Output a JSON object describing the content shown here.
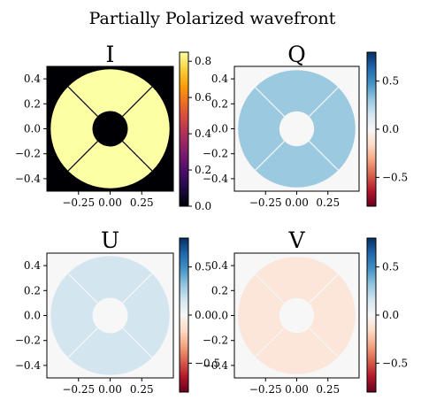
{
  "figure_title": "Partially Polarized wavefront",
  "colors": {
    "background": "#f4f4f4",
    "black": "#000000",
    "I_value": "#fcfea4",
    "Q_value": "#b3d5e8",
    "U_value": "#d2e4f0",
    "V_value": "#fbe5d9"
  },
  "colormaps": {
    "inferno": [
      "#000004",
      "#1b0c41",
      "#4a0c6b",
      "#781c6d",
      "#a52c60",
      "#cf4446",
      "#ed6925",
      "#fb9b06",
      "#f7d13d",
      "#fcffa4"
    ],
    "RdBu": [
      "#67001f",
      "#b2182b",
      "#d6604d",
      "#f4a582",
      "#fddbc7",
      "#f7f7f7",
      "#d1e5f0",
      "#92c5de",
      "#4393c3",
      "#2166ac",
      "#053061"
    ]
  },
  "chart_data": [
    {
      "type": "heatmap",
      "title": "I",
      "colormap": "inferno",
      "xlim": [
        -0.5,
        0.5
      ],
      "ylim": [
        -0.5,
        0.5
      ],
      "xticks": [
        -0.25,
        0.0,
        0.25
      ],
      "xtick_labels": [
        "−0.25",
        "0.00",
        "0.25"
      ],
      "yticks": [
        0.4,
        0.2,
        0.0,
        -0.2,
        -0.4
      ],
      "ytick_labels": [
        "0.4",
        "0.2",
        "0.0",
        "−0.2",
        "−0.4"
      ],
      "colorbar_range": [
        0.0,
        0.85
      ],
      "colorbar_ticks": [
        0.8,
        0.6,
        0.4,
        0.2,
        0.0
      ],
      "colorbar_tick_labels": [
        "0.8",
        "0.6",
        "0.4",
        "0.2",
        "0.0"
      ],
      "pupil_outer_radius": 0.47,
      "pupil_inner_radius": 0.14,
      "pupil_value": 0.85,
      "outside_value": 0.0,
      "spider_angles_deg": [
        45,
        135,
        225,
        315
      ]
    },
    {
      "type": "heatmap",
      "title": "Q",
      "colormap": "RdBu",
      "xlim": [
        -0.5,
        0.5
      ],
      "ylim": [
        -0.5,
        0.5
      ],
      "xticks": [
        -0.25,
        0.0,
        0.25
      ],
      "xtick_labels": [
        "−0.25",
        "0.00",
        "0.25"
      ],
      "yticks": [
        0.4,
        0.2,
        0.0,
        -0.2,
        -0.4
      ],
      "ytick_labels": [
        "0.4",
        "0.2",
        "0.0",
        "−0.2",
        "−0.4"
      ],
      "colorbar_range": [
        -0.8,
        0.8
      ],
      "colorbar_ticks": [
        0.5,
        0.0,
        -0.5
      ],
      "colorbar_tick_labels": [
        "0.5",
        "0.0",
        "−0.5"
      ],
      "pupil_outer_radius": 0.47,
      "pupil_inner_radius": 0.14,
      "pupil_value": 0.3,
      "outside_value": 0.0,
      "spider_angles_deg": [
        45,
        135,
        225,
        315
      ]
    },
    {
      "type": "heatmap",
      "title": "U",
      "colormap": "RdBu",
      "xlim": [
        -0.5,
        0.5
      ],
      "ylim": [
        -0.5,
        0.5
      ],
      "xticks": [
        -0.25,
        0.0,
        0.25
      ],
      "xtick_labels": [
        "−0.25",
        "0.00",
        "0.25"
      ],
      "yticks": [
        0.4,
        0.2,
        0.0,
        -0.2,
        -0.4
      ],
      "ytick_labels": [
        "0.4",
        "0.2",
        "0.0",
        "−0.2",
        "−0.4"
      ],
      "colorbar_range": [
        -0.8,
        0.8
      ],
      "colorbar_ticks": [
        0.5,
        0.0,
        -0.5
      ],
      "colorbar_tick_labels": [
        "0.5",
        "0.0",
        "−0.5"
      ],
      "pupil_outer_radius": 0.47,
      "pupil_inner_radius": 0.14,
      "pupil_value": 0.15,
      "outside_value": 0.0,
      "spider_angles_deg": [
        45,
        135,
        225,
        315
      ]
    },
    {
      "type": "heatmap",
      "title": "V",
      "colormap": "RdBu",
      "xlim": [
        -0.5,
        0.5
      ],
      "ylim": [
        -0.5,
        0.5
      ],
      "xticks": [
        -0.25,
        0.0,
        0.25
      ],
      "xtick_labels": [
        "−0.25",
        "0.00",
        "0.25"
      ],
      "yticks": [
        0.4,
        0.2,
        0.0,
        -0.2,
        -0.4
      ],
      "ytick_labels": [
        "0.4",
        "0.2",
        "0.0",
        "−0.2",
        "−0.4"
      ],
      "colorbar_range": [
        -0.8,
        0.8
      ],
      "colorbar_ticks": [
        0.5,
        0.0,
        -0.5
      ],
      "colorbar_tick_labels": [
        "0.5",
        "0.0",
        "−0.5"
      ],
      "pupil_outer_radius": 0.47,
      "pupil_inner_radius": 0.14,
      "pupil_value": -0.1,
      "outside_value": 0.0,
      "spider_angles_deg": [
        45,
        135,
        225,
        315
      ]
    }
  ]
}
